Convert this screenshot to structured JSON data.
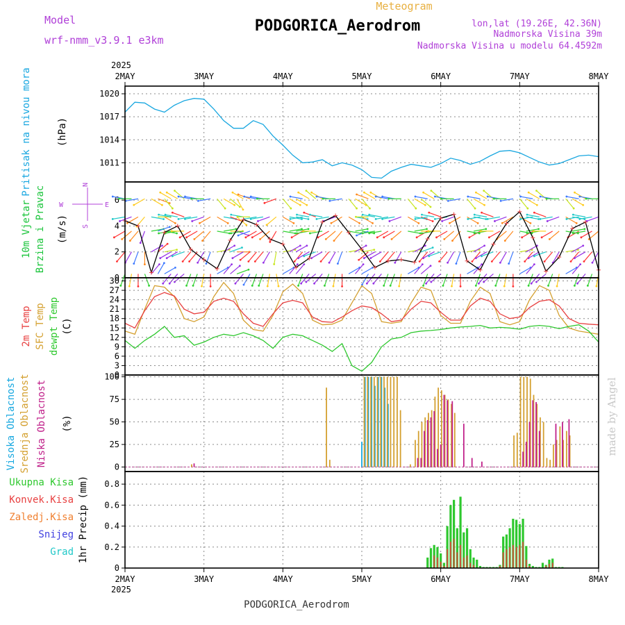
{
  "header": {
    "model_label": "Model",
    "model_value": "wrf-nmm_v3.9.1  e3km",
    "product": "Meteogram",
    "station": "PODGORICA_Aerodrom",
    "lonlat": "lon,lat (19.26E, 42.36N)",
    "elevation": "Nadmorska Visina 39m",
    "model_elevation": "Nadmorska Visina u modelu 64.4592m"
  },
  "footer": {
    "station": "PODGORICA_Aerodrom",
    "credit": "made by Angel"
  },
  "year": "2025",
  "time_axis": {
    "labels": [
      "2MAY",
      "3MAY",
      "4MAY",
      "5MAY",
      "6MAY",
      "7MAY",
      "8MAY"
    ],
    "range_hours": [
      0,
      144
    ]
  },
  "colors": {
    "pressure": "#19a7e0",
    "wind_label": "#19c43a",
    "wind_compass": "#b040d8",
    "temp2m": "#e84040",
    "sfc": "#d4a030",
    "dewpt": "#2ec82e",
    "cloud_high": "#18a8e0",
    "cloud_mid": "#d4a030",
    "cloud_low": "#c0208a",
    "precip_total": "#2ec82e",
    "precip_conv": "#e84040",
    "precip_frozen": "#f08030",
    "precip_snow": "#4040e0",
    "precip_hail": "#20c8c8",
    "header_purple": "#b040d8",
    "product_color": "#e8b040"
  },
  "panels": {
    "pressure": {
      "label1": "Pritisak na nivou mora",
      "label2": "(hPa)"
    },
    "wind": {
      "label1": "10m Vjetar",
      "label2": "Brzina i Pravac",
      "unit": "(m/s)",
      "compass": {
        "n": "N",
        "s": "S",
        "e": "E",
        "w": "W"
      }
    },
    "temp": {
      "label1": "2m Temp",
      "label2": "SFC Temp",
      "label3": "dewpt Temp",
      "unit": "(C)"
    },
    "cloud": {
      "label1": "Visoka Oblacnost",
      "label2": "Srednja Oblacnost",
      "label3": "Niska Oblacnost",
      "unit": "(%)"
    },
    "precip": {
      "label1": "Ukupna Kisa",
      "label2": "Konvek.Kisa",
      "label3": "Zaledj.Kisa",
      "label4": "Snijeg",
      "label5": "Grad",
      "unit": "1hr Precip (mm)"
    }
  },
  "chart_data": [
    {
      "type": "line",
      "id": "pressure",
      "ylabel": "(hPa)",
      "ylim": [
        1008.5,
        1021
      ],
      "yticks": [
        1011,
        1014,
        1017,
        1020
      ],
      "grid": true,
      "x": [
        0,
        3,
        6,
        9,
        12,
        15,
        18,
        21,
        24,
        27,
        30,
        33,
        36,
        39,
        42,
        45,
        48,
        51,
        54,
        57,
        60,
        63,
        66,
        69,
        72,
        75,
        78,
        81,
        84,
        87,
        90,
        93,
        96,
        99,
        102,
        105,
        108,
        111,
        114,
        117,
        120,
        123,
        126,
        129,
        132,
        135,
        138,
        141,
        144
      ],
      "series": [
        {
          "name": "Pritisak",
          "values": [
            1017.6,
            1018.9,
            1018.8,
            1018.0,
            1017.6,
            1018.5,
            1019.1,
            1019.4,
            1019.3,
            1018.0,
            1016.5,
            1015.5,
            1015.5,
            1016.5,
            1016.0,
            1014.5,
            1013.3,
            1012.0,
            1011.0,
            1011.1,
            1011.4,
            1010.6,
            1011.0,
            1010.7,
            1010.1,
            1009.1,
            1009.0,
            1009.9,
            1010.4,
            1010.8,
            1010.6,
            1010.4,
            1010.9,
            1011.6,
            1011.3,
            1010.8,
            1011.2,
            1011.9,
            1012.5,
            1012.6,
            1012.3,
            1011.7,
            1011.1,
            1010.7,
            1010.9,
            1011.4,
            1011.9,
            1012.0,
            1011.8
          ]
        }
      ]
    },
    {
      "type": "line",
      "id": "wind",
      "ylabel": "(m/s)",
      "ylim": [
        0,
        7.4
      ],
      "yticks": [
        0,
        2,
        4,
        6
      ],
      "grid": true,
      "x": [
        0,
        4,
        8,
        12,
        16,
        20,
        24,
        28,
        32,
        36,
        40,
        44,
        48,
        52,
        56,
        60,
        64,
        68,
        72,
        76,
        80,
        84,
        88,
        92,
        96,
        100,
        104,
        108,
        112,
        116,
        120,
        124,
        128,
        132,
        136,
        140,
        144
      ],
      "series": [
        {
          "name": "Brzina vjetra",
          "values": [
            4.4,
            4.0,
            0.4,
            3.5,
            4.0,
            2.2,
            1.4,
            0.7,
            2.9,
            4.5,
            4.1,
            3.0,
            2.6,
            0.8,
            1.5,
            4.3,
            4.8,
            3.5,
            2.2,
            0.8,
            1.3,
            1.4,
            1.2,
            3.0,
            4.6,
            4.9,
            1.3,
            0.6,
            2.6,
            4.2,
            5.1,
            3.1,
            0.5,
            1.6,
            3.8,
            4.3,
            0.6
          ]
        }
      ],
      "vector_hours": [
        0,
        2,
        4,
        6,
        8,
        10,
        12,
        14,
        16,
        18,
        20,
        22,
        24,
        26,
        28,
        30,
        32,
        34,
        36,
        38,
        40,
        42,
        44,
        46,
        48,
        50,
        52,
        54,
        56,
        58,
        60,
        62,
        64,
        66,
        68,
        70,
        72,
        74,
        76,
        78,
        80,
        82,
        84,
        86,
        88,
        90,
        92,
        94,
        96,
        98,
        100,
        102,
        104,
        106,
        108,
        110,
        112,
        114,
        116,
        118,
        120,
        122,
        124,
        126,
        128,
        130,
        132,
        134,
        136,
        138,
        140,
        142,
        144
      ],
      "wind_dir_deg": [
        200,
        190,
        180,
        160,
        40,
        30,
        60,
        220,
        220,
        230,
        200,
        200,
        190,
        180,
        60,
        40,
        50,
        70,
        220,
        210,
        200,
        200,
        190,
        170,
        60,
        40,
        40,
        200,
        220,
        230,
        220,
        200,
        190,
        180,
        60,
        40,
        60,
        210,
        220,
        220,
        200,
        200,
        190,
        60,
        40,
        50,
        200,
        220,
        230,
        200,
        190,
        180,
        60,
        40,
        200,
        220,
        230,
        200,
        190,
        180,
        60,
        40,
        200,
        220,
        230,
        200,
        190,
        60,
        40,
        200,
        220,
        200,
        190
      ]
    },
    {
      "type": "line",
      "id": "temp",
      "ylabel": "(C)",
      "ylim": [
        0,
        31
      ],
      "yticks": [
        0,
        3,
        6,
        9,
        12,
        15,
        18,
        21,
        24,
        27,
        30
      ],
      "grid": true,
      "x": [
        0,
        3,
        6,
        9,
        12,
        15,
        18,
        21,
        24,
        27,
        30,
        33,
        36,
        39,
        42,
        45,
        48,
        51,
        54,
        57,
        60,
        63,
        66,
        69,
        72,
        75,
        78,
        81,
        84,
        87,
        90,
        93,
        96,
        99,
        102,
        105,
        108,
        111,
        114,
        117,
        120,
        123,
        126,
        129,
        132,
        135,
        138,
        141,
        144
      ],
      "series": [
        {
          "name": "2m Temp",
          "values": [
            16.5,
            15.0,
            20.5,
            25.0,
            26.3,
            25.2,
            21.0,
            19.5,
            20.0,
            23.5,
            24.5,
            23.5,
            19.5,
            16.5,
            15.5,
            19.5,
            23.0,
            23.8,
            23.0,
            18.5,
            17.0,
            16.8,
            18.5,
            20.5,
            22.0,
            21.5,
            19.5,
            17.0,
            17.5,
            21.0,
            23.5,
            23.0,
            20.0,
            17.5,
            17.5,
            22.0,
            24.5,
            23.5,
            19.5,
            18.0,
            18.5,
            21.5,
            23.5,
            24.0,
            22.0,
            18.0,
            16.5,
            16.2,
            16.0
          ]
        },
        {
          "name": "SFC Temp",
          "values": [
            14.0,
            13.0,
            21.0,
            28.5,
            28.0,
            25.0,
            18.0,
            17.0,
            18.5,
            25.0,
            29.5,
            26.0,
            17.5,
            14.5,
            14.0,
            19.0,
            26.5,
            29.0,
            26.0,
            17.5,
            16.0,
            16.2,
            17.5,
            23.0,
            28.5,
            26.0,
            17.0,
            16.5,
            17.0,
            23.0,
            28.0,
            27.0,
            19.0,
            16.5,
            16.5,
            23.5,
            28.0,
            26.0,
            17.0,
            16.0,
            17.0,
            24.0,
            28.5,
            27.0,
            19.0,
            15.0,
            14.0,
            13.5,
            13.0
          ]
        },
        {
          "name": "dewpt Temp",
          "values": [
            11.0,
            8.5,
            11.0,
            13.0,
            15.5,
            12.0,
            12.5,
            9.5,
            10.5,
            12.0,
            13.0,
            12.5,
            13.5,
            12.5,
            11.0,
            8.5,
            12.0,
            13.0,
            12.5,
            11.0,
            9.5,
            7.5,
            10.0,
            3.0,
            1.2,
            4.0,
            9.0,
            11.5,
            12.0,
            13.5,
            14.0,
            14.2,
            14.5,
            15.0,
            15.3,
            15.5,
            15.8,
            15.0,
            15.2,
            15.0,
            14.6,
            15.5,
            15.8,
            15.5,
            14.8,
            15.5,
            16.0,
            14.0,
            10.5
          ]
        }
      ]
    },
    {
      "type": "bar",
      "id": "cloud",
      "ylabel": "(%)",
      "ylim": [
        -5,
        102
      ],
      "yticks": [
        0,
        25,
        50,
        75,
        100
      ],
      "grid": true,
      "series": [
        {
          "name": "Visoka Oblacnost",
          "x": [
            72,
            73,
            74,
            75,
            76,
            77,
            78,
            79,
            80
          ],
          "values": [
            28,
            100,
            100,
            100,
            90,
            100,
            100,
            88,
            70
          ]
        },
        {
          "name": "Srednja Oblacnost",
          "x": [
            20,
            61,
            62,
            72.5,
            73.5,
            74.5,
            75.5,
            76.5,
            77.5,
            78.5,
            79.5,
            80.5,
            81.5,
            82.5,
            83.5,
            86.5,
            88,
            89,
            90,
            91,
            92,
            93,
            94,
            95,
            96,
            97,
            98,
            99,
            100,
            118,
            119,
            120,
            121,
            122,
            123,
            124,
            125,
            126,
            127,
            128,
            129,
            130,
            131,
            132,
            133,
            134,
            135
          ],
          "values": [
            3,
            88,
            8,
            100,
            100,
            100,
            100,
            100,
            100,
            100,
            100,
            100,
            100,
            100,
            63,
            3,
            30,
            40,
            50,
            55,
            60,
            63,
            78,
            88,
            85,
            80,
            75,
            70,
            60,
            35,
            38,
            100,
            100,
            100,
            98,
            80,
            70,
            55,
            50,
            10,
            8,
            25,
            30,
            45,
            30,
            40,
            35
          ]
        },
        {
          "name": "Niska Oblacnost",
          "x": [
            20.5,
            88.5,
            89.5,
            90.5,
            91.5,
            92.5,
            93.5,
            94.5,
            95.5,
            96.5,
            97.5,
            99,
            102.5,
            105,
            108,
            120.5,
            121.5,
            122.5,
            123.5,
            124.5,
            125.5,
            130.5,
            132.5,
            134.5
          ],
          "values": [
            4,
            10,
            10,
            40,
            52,
            55,
            62,
            20,
            25,
            80,
            74,
            73,
            48,
            10,
            6,
            17,
            28,
            50,
            74,
            72,
            40,
            48,
            50,
            53
          ]
        }
      ]
    },
    {
      "type": "bar",
      "id": "precip",
      "ylabel": "1hr Precip (mm)",
      "ylim": [
        0,
        0.92
      ],
      "yticks": [
        0,
        0.2,
        0.4,
        0.6,
        0.8
      ],
      "grid": true,
      "series": [
        {
          "name": "Ukupna Kisa",
          "x": [
            92,
            93,
            94,
            95,
            96,
            97,
            98,
            99,
            100,
            101,
            102,
            103,
            104,
            105,
            106,
            107,
            108,
            109,
            110,
            111,
            112,
            113,
            114,
            115,
            116,
            117,
            118,
            119,
            120,
            121,
            122,
            123,
            124,
            125,
            126,
            127,
            128,
            129,
            130,
            131,
            132,
            133
          ],
          "values": [
            0.1,
            0.19,
            0.22,
            0.2,
            0.14,
            0.05,
            0.4,
            0.6,
            0.65,
            0.38,
            0.68,
            0.34,
            0.38,
            0.18,
            0.1,
            0.08,
            0.02,
            0.01,
            0.01,
            0.01,
            0.01,
            0.01,
            0.03,
            0.3,
            0.32,
            0.38,
            0.47,
            0.46,
            0.42,
            0.47,
            0.21,
            0.04,
            0.02,
            0.01,
            0.01,
            0.05,
            0.03,
            0.08,
            0.09,
            0.01,
            0.01,
            0.01
          ]
        },
        {
          "name": "Konvek.Kisa",
          "x": [
            94,
            95,
            96,
            97,
            98,
            99,
            100,
            101,
            102,
            103,
            104,
            105,
            106,
            114,
            115,
            116,
            117,
            118,
            119,
            120,
            121,
            122,
            123,
            128,
            129,
            130
          ],
          "values": [
            0.12,
            0.1,
            0.06,
            0.02,
            0.18,
            0.25,
            0.28,
            0.15,
            0.22,
            0.1,
            0.12,
            0.05,
            0.03,
            0.02,
            0.15,
            0.18,
            0.2,
            0.22,
            0.2,
            0.22,
            0.25,
            0.08,
            0.02,
            0.02,
            0.04,
            0.05
          ]
        }
      ]
    }
  ]
}
